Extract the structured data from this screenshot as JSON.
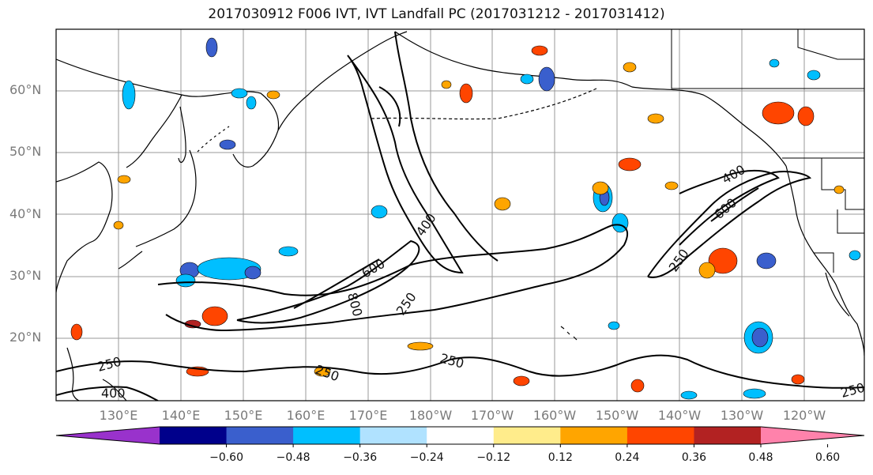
{
  "title": "2017030912 F006 IVT, IVT Landfall PC (2017031212 - 2017031412)",
  "lat_labels": [
    "60°N",
    "50°N",
    "40°N",
    "30°N",
    "20°N"
  ],
  "lon_labels": [
    "130°E",
    "140°E",
    "150°E",
    "160°E",
    "170°E",
    "180°W",
    "170°W",
    "160°W",
    "150°W",
    "140°W",
    "130°W",
    "120°W"
  ],
  "contour_labels": [
    "400",
    "600",
    "800",
    "250",
    "250",
    "250",
    "250",
    "400",
    "600",
    "250",
    "250",
    "400"
  ],
  "colorbar": {
    "colors": [
      "#9932CC",
      "#00008B",
      "#3A5FCD",
      "#00BFFF",
      "#B0E2FF",
      "#FFFFFF",
      "#FFEC8B",
      "#FFA500",
      "#FF4500",
      "#B22222",
      "#FF82AB"
    ],
    "ticks": [
      "−0.60",
      "−0.48",
      "−0.36",
      "−0.24",
      "−0.12",
      "0.12",
      "0.24",
      "0.36",
      "0.48",
      "0.60"
    ]
  }
}
